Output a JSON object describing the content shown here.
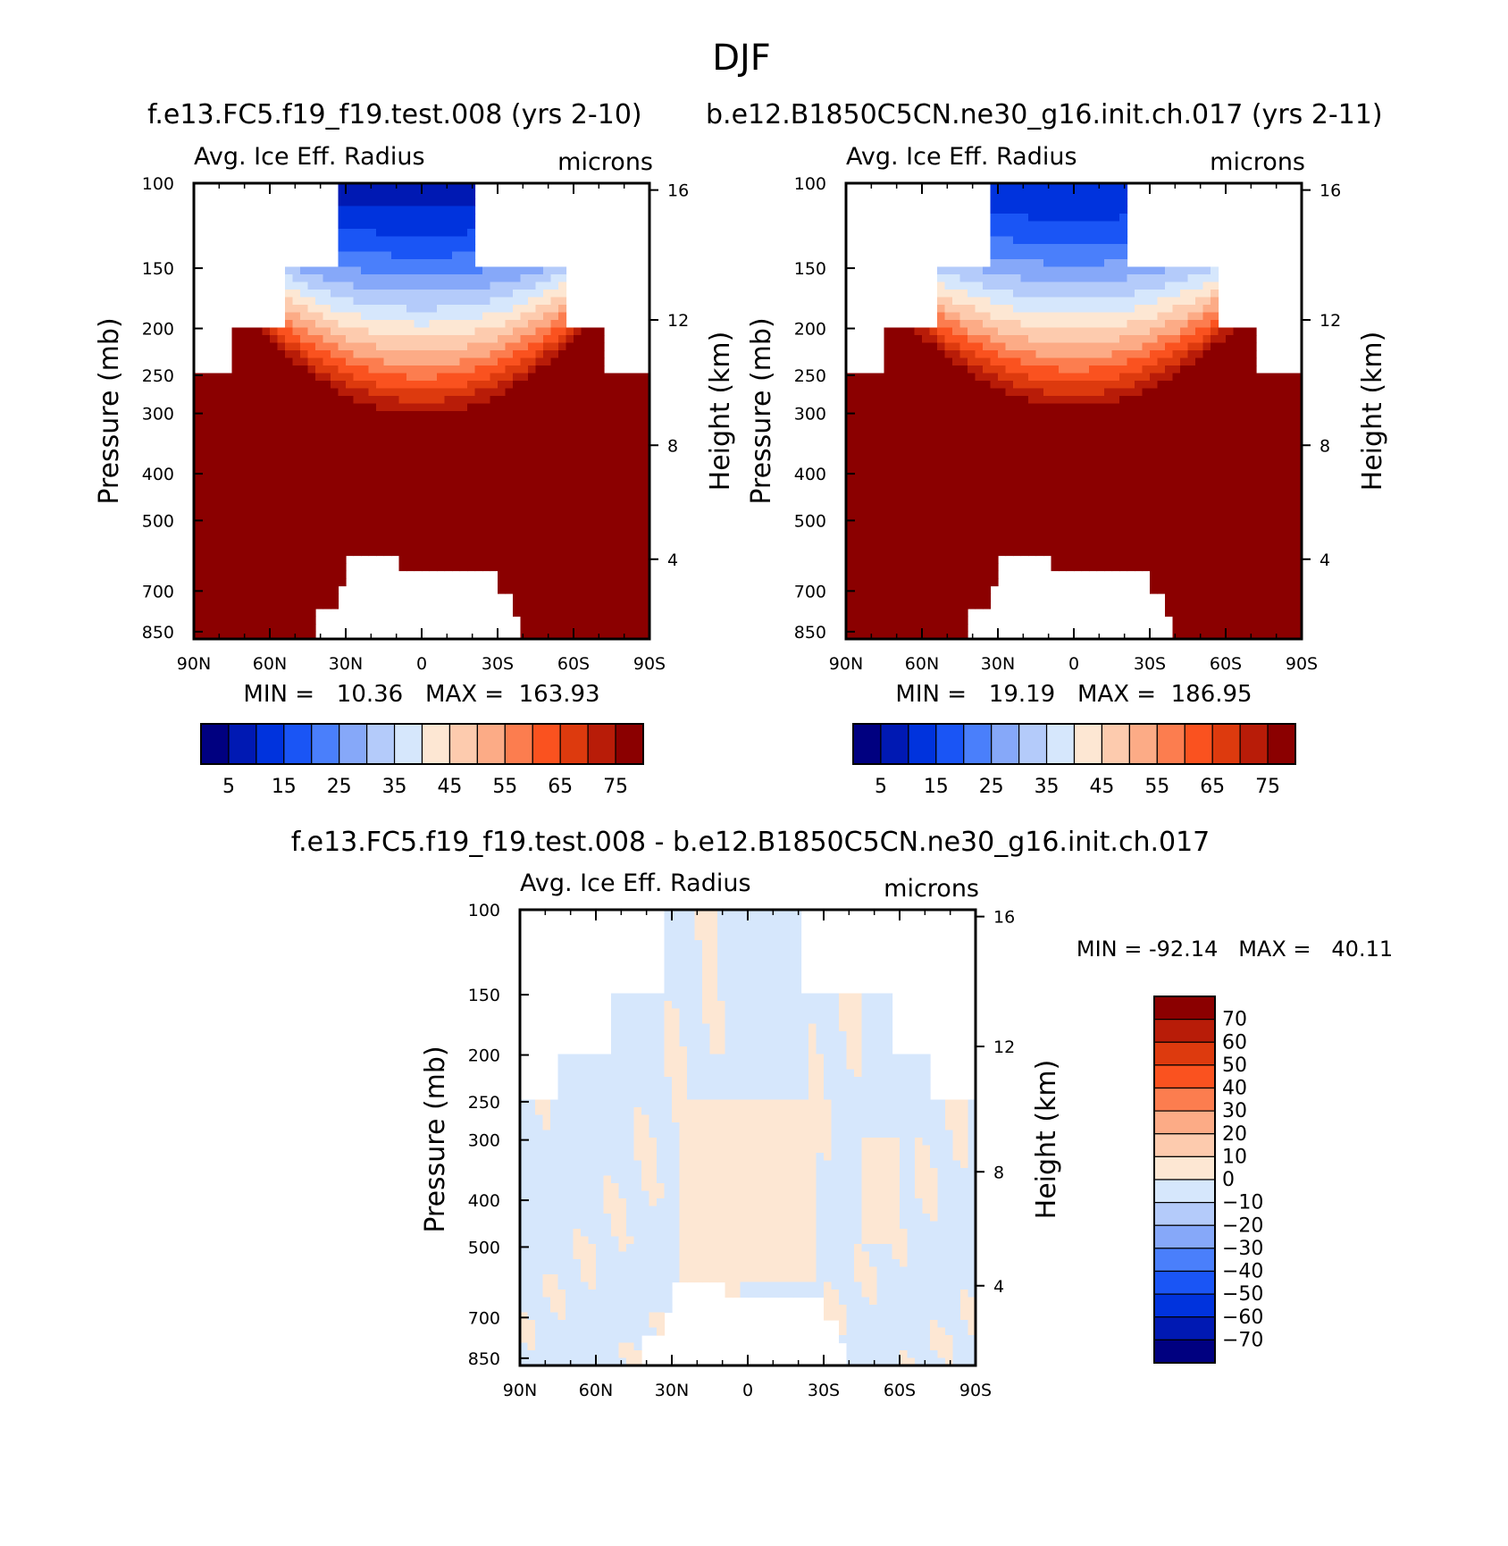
{
  "page": {
    "title": "DJF"
  },
  "colors": {
    "abs_fill": [
      "#000080",
      "#0019b3",
      "#0033dd",
      "#1a55f5",
      "#4a7ffb",
      "#86a8f9",
      "#b4cbfa",
      "#d6e7fc",
      "#fde7d3",
      "#fdcbae",
      "#fcab86",
      "#fc7d4f",
      "#fa521f",
      "#dd3a0e",
      "#b81c08",
      "#8b0000"
    ],
    "diff_fill": [
      "#000080",
      "#0019b3",
      "#0033dd",
      "#1a55f5",
      "#4a7ffb",
      "#86a8f9",
      "#b4cbfa",
      "#d6e7fc",
      "#fde7d3",
      "#fdcbae",
      "#fcab86",
      "#fc7d4f",
      "#fa521f",
      "#dd3a0e",
      "#b81c08",
      "#8b0000"
    ]
  },
  "chart_data": [
    {
      "type": "heatmap",
      "title": "f.e13.FC5.f19_f19.test.008 (yrs 2-10)",
      "left_label": "Avg. Ice Eff. Radius",
      "right_label": "microns",
      "xlabel": "",
      "ylabel": "Pressure (mb)",
      "ylabel_right": "Height (km)",
      "x_ticks": [
        "90N",
        "60N",
        "30N",
        "0",
        "30S",
        "60S",
        "90S"
      ],
      "y_ticks": [
        "100",
        "150",
        "200",
        "250",
        "300",
        "400",
        "500",
        "700",
        "850"
      ],
      "y_ticks_right": [
        "16",
        "12",
        "8",
        "4"
      ],
      "min_max": "MIN =   10.36   MAX =  163.93",
      "colorbar_labels": [
        "5",
        "15",
        "25",
        "35",
        "45",
        "55",
        "65",
        "75"
      ],
      "colorbar_levels": [
        0,
        5,
        10,
        15,
        20,
        25,
        30,
        35,
        40,
        45,
        50,
        55,
        60,
        65,
        70,
        75
      ],
      "min": 10.36,
      "max": 163.93
    },
    {
      "type": "heatmap",
      "title": "b.e12.B1850C5CN.ne30_g16.init.ch.017 (yrs 2-11)",
      "left_label": "Avg. Ice Eff. Radius",
      "right_label": "microns",
      "xlabel": "",
      "ylabel": "Pressure (mb)",
      "ylabel_right": "Height (km)",
      "x_ticks": [
        "90N",
        "60N",
        "30N",
        "0",
        "30S",
        "60S",
        "90S"
      ],
      "y_ticks": [
        "100",
        "150",
        "200",
        "250",
        "300",
        "400",
        "500",
        "700",
        "850"
      ],
      "y_ticks_right": [
        "16",
        "12",
        "8",
        "4"
      ],
      "min_max": "MIN =   19.19   MAX =  186.95",
      "colorbar_labels": [
        "5",
        "15",
        "25",
        "35",
        "45",
        "55",
        "65",
        "75"
      ],
      "colorbar_levels": [
        0,
        5,
        10,
        15,
        20,
        25,
        30,
        35,
        40,
        45,
        50,
        55,
        60,
        65,
        70,
        75
      ],
      "min": 19.19,
      "max": 186.95
    },
    {
      "type": "heatmap",
      "title": "f.e13.FC5.f19_f19.test.008 - b.e12.B1850C5CN.ne30_g16.init.ch.017",
      "left_label": "Avg. Ice Eff. Radius",
      "right_label": "microns",
      "xlabel": "",
      "ylabel": "Pressure (mb)",
      "ylabel_right": "Height (km)",
      "x_ticks": [
        "90N",
        "60N",
        "30N",
        "0",
        "30S",
        "60S",
        "90S"
      ],
      "y_ticks": [
        "100",
        "150",
        "200",
        "250",
        "300",
        "400",
        "500",
        "700",
        "850"
      ],
      "y_ticks_right": [
        "16",
        "12",
        "8",
        "4"
      ],
      "min_max": "MIN = -92.14   MAX =   40.11",
      "colorbar_labels": [
        "70",
        "60",
        "50",
        "40",
        "30",
        "20",
        "10",
        "0",
        "-10",
        "-20",
        "-30",
        "-40",
        "-50",
        "-60",
        "-70"
      ],
      "colorbar_levels": [
        -70,
        -60,
        -50,
        -40,
        -30,
        -20,
        -10,
        0,
        10,
        20,
        30,
        40,
        50,
        60,
        70
      ],
      "min": -92.14,
      "max": 40.11
    }
  ]
}
